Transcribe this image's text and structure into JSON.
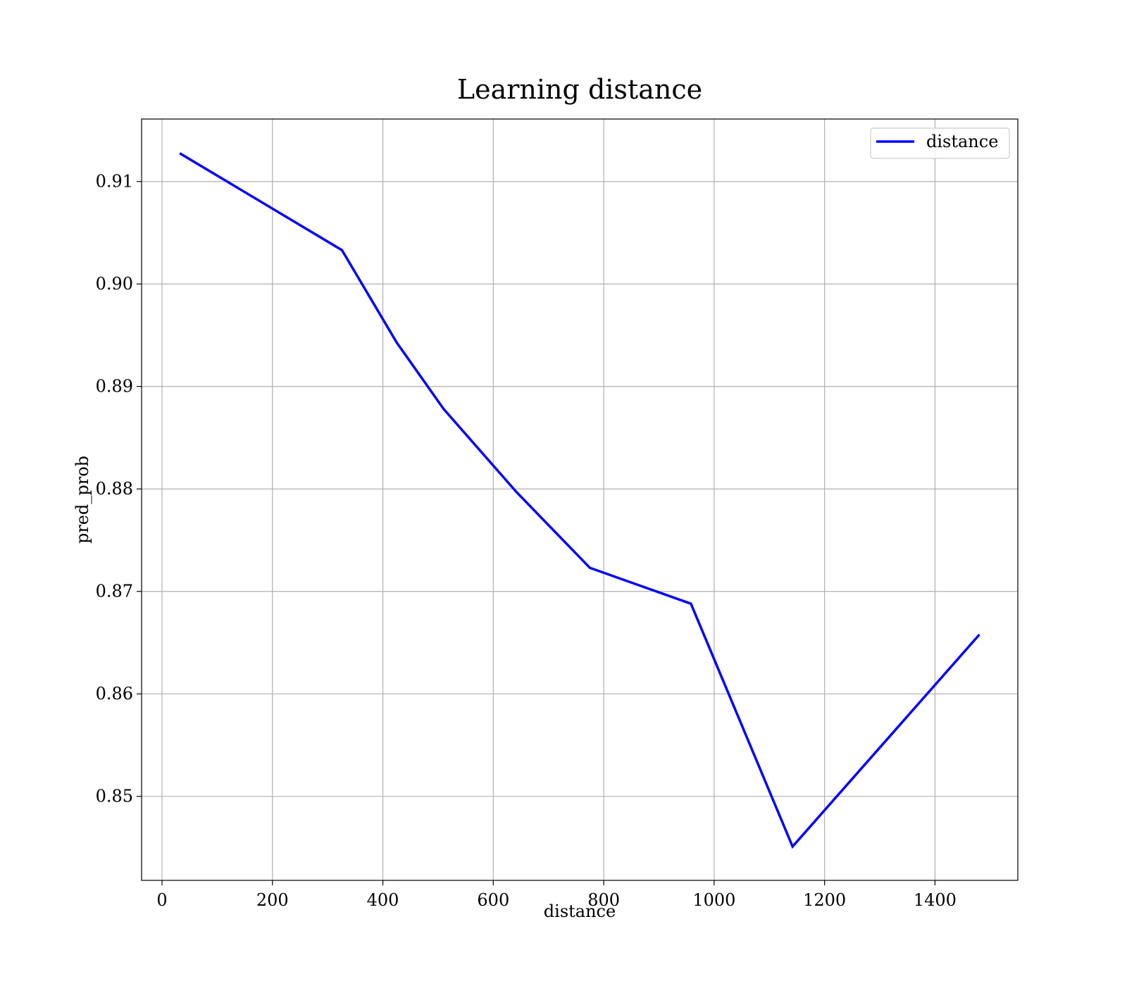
{
  "chart_data": {
    "type": "line",
    "title": "Learning distance",
    "xlabel": "distance",
    "ylabel": "pred_prob",
    "xlim": [
      -37,
      1550
    ],
    "ylim": [
      0.8418,
      0.9161
    ],
    "xticks": [
      0,
      200,
      400,
      600,
      800,
      1000,
      1200,
      1400
    ],
    "xtick_labels": [
      "0",
      "200",
      "400",
      "600",
      "800",
      "1000",
      "1200",
      "1400"
    ],
    "yticks": [
      0.85,
      0.86,
      0.87,
      0.88,
      0.89,
      0.9,
      0.91
    ],
    "ytick_labels": [
      "0.85",
      "0.86",
      "0.87",
      "0.88",
      "0.89",
      "0.90",
      "0.91"
    ],
    "grid": true,
    "legend_position": "top-right",
    "series": [
      {
        "name": "distance",
        "color": "#0000ff",
        "x": [
          34,
          326,
          425,
          510,
          642,
          775,
          958,
          1142,
          1479
        ],
        "y": [
          0.9127,
          0.9033,
          0.8943,
          0.8878,
          0.8797,
          0.8723,
          0.8688,
          0.8451,
          0.8657
        ]
      }
    ]
  }
}
